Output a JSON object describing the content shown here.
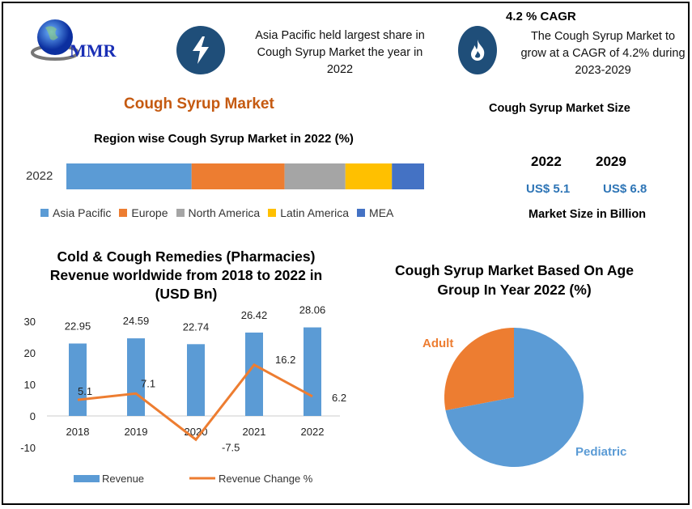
{
  "logo": {
    "text": "MMR"
  },
  "highlights": [
    {
      "icon": "lightning-icon",
      "text": "Asia Pacific held largest share in Cough Syrup Market the year in 2022"
    },
    {
      "icon": "flame-icon",
      "title": "4.2 % CAGR",
      "text": "The Cough Syrup Market to grow at a CAGR of 4.2% during 2023-2029"
    }
  ],
  "main_title": "Cough Syrup Market",
  "market_size": {
    "title": "Cough Syrup Market Size",
    "years": [
      "2022",
      "2029"
    ],
    "values": [
      "US$ 5.1",
      "US$ 6.8"
    ],
    "caption": "Market Size in Billion"
  },
  "colors": {
    "blue": "#5b9bd5",
    "orange": "#ed7d31",
    "gray": "#a5a5a5",
    "yellow": "#ffc000",
    "mea": "#4472c4",
    "title_orange": "#c55a11",
    "value_blue": "#2e75b6",
    "icon_bg": "#1f4e79"
  },
  "chart_data": [
    {
      "type": "bar",
      "stacked": true,
      "orientation": "horizontal",
      "title": "Region wise Cough Syrup Market in 2022 (%)",
      "categories": [
        "2022"
      ],
      "series": [
        {
          "name": "Asia Pacific",
          "values": [
            35
          ]
        },
        {
          "name": "Europe",
          "values": [
            26
          ]
        },
        {
          "name": "North America",
          "values": [
            17
          ]
        },
        {
          "name": "Latin America",
          "values": [
            13
          ]
        },
        {
          "name": "MEA",
          "values": [
            9
          ]
        }
      ],
      "legend": "bottom"
    },
    {
      "type": "bar",
      "title": "Cold & Cough Remedies (Pharmacies) Revenue worldwide from 2018 to 2022 in (USD Bn)",
      "categories": [
        "2018",
        "2019",
        "2020",
        "2021",
        "2022"
      ],
      "series": [
        {
          "name": "Revenue",
          "type": "bar",
          "values": [
            22.95,
            24.59,
            22.74,
            26.42,
            28.06
          ]
        },
        {
          "name": "Revenue Change %",
          "type": "line",
          "values": [
            5.1,
            7.1,
            -7.5,
            16.2,
            6.2
          ]
        }
      ],
      "yticks": [
        "30",
        "20",
        "10",
        "0",
        "-10"
      ],
      "ylim": [
        -10,
        30
      ],
      "legend": "bottom",
      "grid": false
    },
    {
      "type": "pie",
      "title": "Cough Syrup Market  Based On Age Group In Year 2022 (%)",
      "categories": [
        "Adult",
        "Pediatric"
      ],
      "values": [
        28,
        72
      ]
    }
  ]
}
